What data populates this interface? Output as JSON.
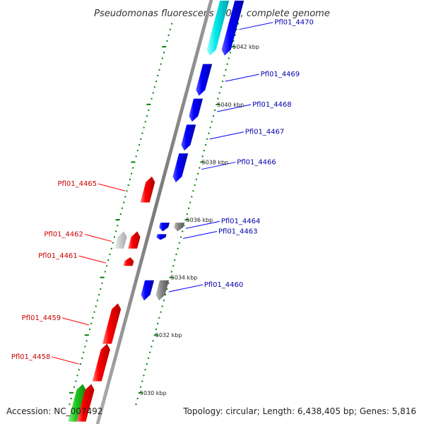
{
  "title": "Pseudomonas fluorescens Pf0-1, complete genome",
  "footer": {
    "accession": "Accession: NC_007492",
    "topology": "Topology: circular; Length: 6,438,405 bp; Genes: 5,816"
  },
  "colors": {
    "forward": "#ff0000",
    "reverse": "#0000ff",
    "forward_label": "#cc0000",
    "reverse_label": "#0000aa",
    "tick": "#008000",
    "backbone": "#888888",
    "gray_gene": "#888888",
    "light_gray_gene": "#c8c8c8",
    "cyan_gene": "#00e0e0",
    "green_gene": "#22bb22"
  },
  "ticks": [
    {
      "kbp": 5030,
      "label": "5030 kbp"
    },
    {
      "kbp": 5032,
      "label": "5032 kbp"
    },
    {
      "kbp": 5034,
      "label": "5034 kbp"
    },
    {
      "kbp": 5036,
      "label": "5036 kbp"
    },
    {
      "kbp": 5038,
      "label": "5038 kbp"
    },
    {
      "kbp": 5040,
      "label": "5040 kbp"
    },
    {
      "kbp": 5042,
      "label": "5042 kbp"
    }
  ],
  "genes": [
    {
      "label": "Pfl01_4470",
      "strand": "reverse",
      "start_kbp": 5041.7,
      "end_kbp": 5043.6,
      "color": "cyan"
    },
    {
      "label": "Pfl01_4469",
      "strand": "reverse",
      "start_kbp": 5040.3,
      "end_kbp": 5041.4,
      "color": "blue"
    },
    {
      "label": "Pfl01_4468",
      "strand": "reverse",
      "start_kbp": 5039.4,
      "end_kbp": 5040.2,
      "color": "blue"
    },
    {
      "label": "Pfl01_4467",
      "strand": "reverse",
      "start_kbp": 5038.4,
      "end_kbp": 5039.3,
      "color": "blue"
    },
    {
      "label": "Pfl01_4466",
      "strand": "reverse",
      "start_kbp": 5037.3,
      "end_kbp": 5038.3,
      "color": "blue"
    },
    {
      "label": "Pfl01_4465",
      "strand": "forward",
      "start_kbp": 5036.6,
      "end_kbp": 5037.5,
      "color": "red"
    },
    {
      "label": "Pfl01_4464",
      "strand": "reverse",
      "start_kbp": 5035.6,
      "end_kbp": 5035.9,
      "color": "blue"
    },
    {
      "label": "Pfl01_4463",
      "strand": "reverse",
      "start_kbp": 5035.3,
      "end_kbp": 5035.5,
      "color": "blue"
    },
    {
      "label": "Pfl01_4462",
      "strand": "forward",
      "start_kbp": 5035.0,
      "end_kbp": 5035.6,
      "color": "red"
    },
    {
      "label": "Pfl01_4461",
      "strand": "forward",
      "start_kbp": 5034.4,
      "end_kbp": 5034.7,
      "color": "red"
    },
    {
      "label": "Pfl01_4460",
      "strand": "reverse",
      "start_kbp": 5033.2,
      "end_kbp": 5033.9,
      "color": "blue"
    },
    {
      "label": "Pfl01_4459",
      "strand": "forward",
      "start_kbp": 5031.7,
      "end_kbp": 5033.1,
      "color": "red"
    },
    {
      "label": "Pfl01_4458",
      "strand": "forward",
      "start_kbp": 5030.4,
      "end_kbp": 5031.7,
      "color": "red"
    }
  ],
  "extra_features": [
    {
      "strand": "reverse",
      "outer": true,
      "start_kbp": 5035.6,
      "end_kbp": 5035.9,
      "color": "gray"
    },
    {
      "strand": "reverse",
      "outer": true,
      "start_kbp": 5033.2,
      "end_kbp": 5033.9,
      "color": "gray"
    },
    {
      "strand": "forward",
      "outer": true,
      "start_kbp": 5035.0,
      "end_kbp": 5035.6,
      "color": "light_gray"
    },
    {
      "strand": "forward",
      "outer": true,
      "start_kbp": 5029.0,
      "end_kbp": 5030.3,
      "color": "green"
    },
    {
      "strand": "forward",
      "outer": false,
      "start_kbp": 5029.0,
      "end_kbp": 5030.3,
      "color": "red"
    },
    {
      "strand": "reverse",
      "outer": true,
      "start_kbp": 5041.7,
      "end_kbp": 5043.6,
      "color": "blue"
    }
  ]
}
